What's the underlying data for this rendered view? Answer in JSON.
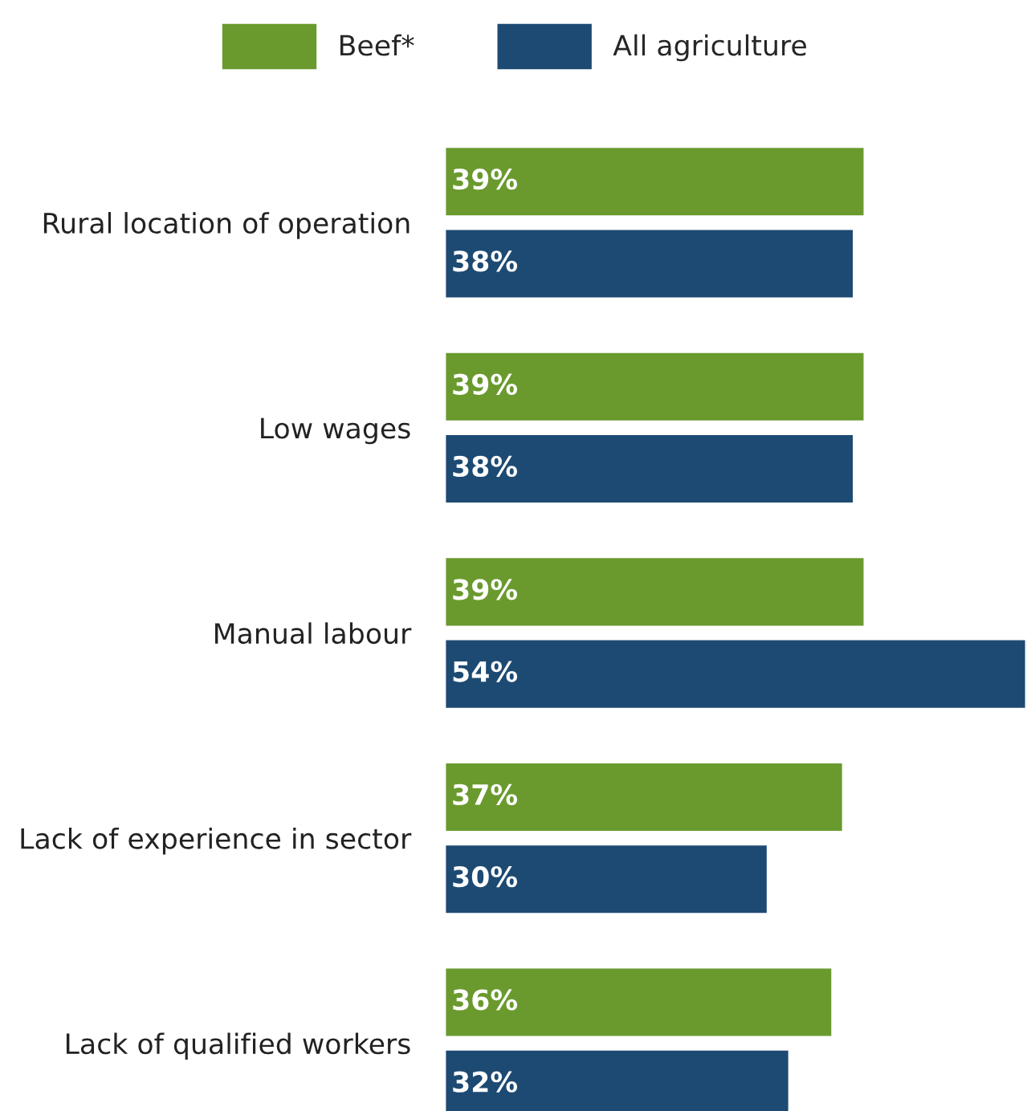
{
  "chart_data": {
    "type": "bar",
    "orientation": "horizontal",
    "categories": [
      "Rural location of operation",
      "Low wages",
      "Manual labour",
      "Lack of experience in sector",
      "Lack of qualified workers"
    ],
    "series": [
      {
        "name": "Beef*",
        "color": "#6a9a2e",
        "values": [
          39,
          39,
          39,
          37,
          36
        ],
        "value_labels": [
          "39%",
          "39%",
          "39%",
          "37%",
          "36%"
        ]
      },
      {
        "name": "All agriculture",
        "color": "#1d4a72",
        "values": [
          38,
          38,
          54,
          30,
          32
        ],
        "value_labels": [
          "38%",
          "38%",
          "54%",
          "30%",
          "32%"
        ]
      }
    ],
    "legend": "top",
    "grid": false
  }
}
